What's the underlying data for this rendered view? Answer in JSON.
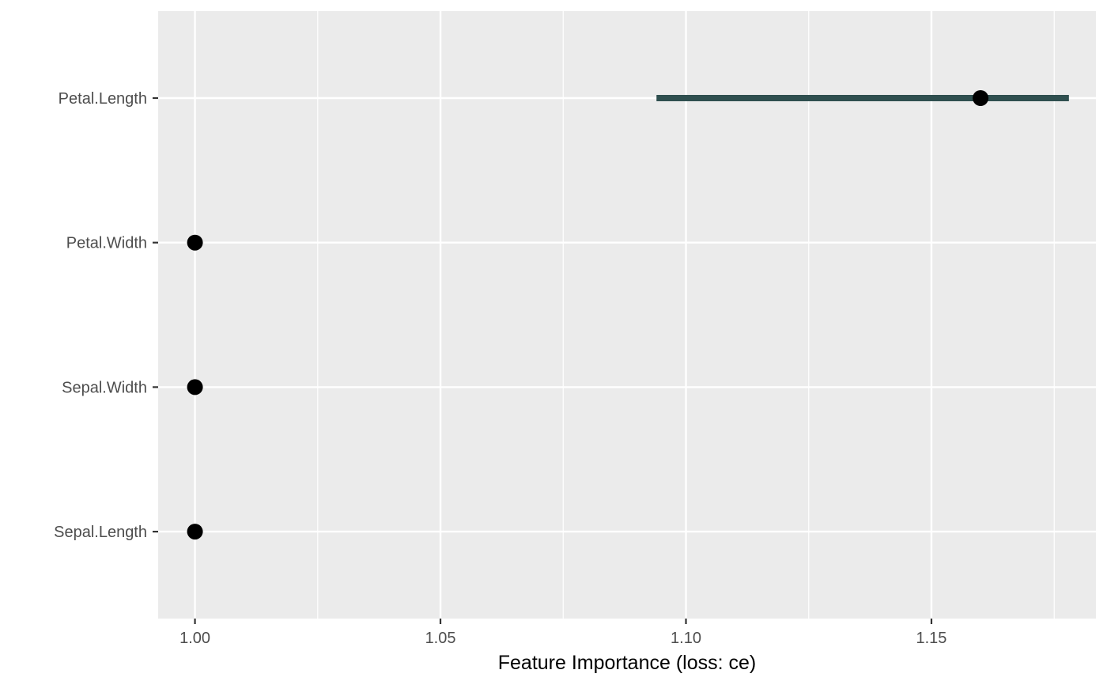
{
  "chart_data": {
    "type": "scatter",
    "title": "",
    "xlabel": "Feature Importance (loss: ce)",
    "ylabel": "",
    "xlim": [
      0.9925,
      1.1835
    ],
    "x_ticks": [
      "1.00",
      "1.05",
      "1.10",
      "1.15"
    ],
    "x_tick_values": [
      1.0,
      1.05,
      1.1,
      1.15
    ],
    "grid": true,
    "categories": [
      "Petal.Length",
      "Petal.Width",
      "Sepal.Width",
      "Sepal.Length"
    ],
    "points": [
      {
        "feature": "Petal.Length",
        "importance": 1.16,
        "lower": 1.094,
        "upper": 1.178
      },
      {
        "feature": "Petal.Width",
        "importance": 1.0,
        "lower": 1.0,
        "upper": 1.0
      },
      {
        "feature": "Sepal.Width",
        "importance": 1.0,
        "lower": 1.0,
        "upper": 1.0
      },
      {
        "feature": "Sepal.Length",
        "importance": 1.0,
        "lower": 1.0,
        "upper": 1.0
      }
    ],
    "colors": {
      "panel": "#ebebeb",
      "grid": "#ffffff",
      "range_line": "#2f4f4f",
      "point": "#000000"
    }
  }
}
